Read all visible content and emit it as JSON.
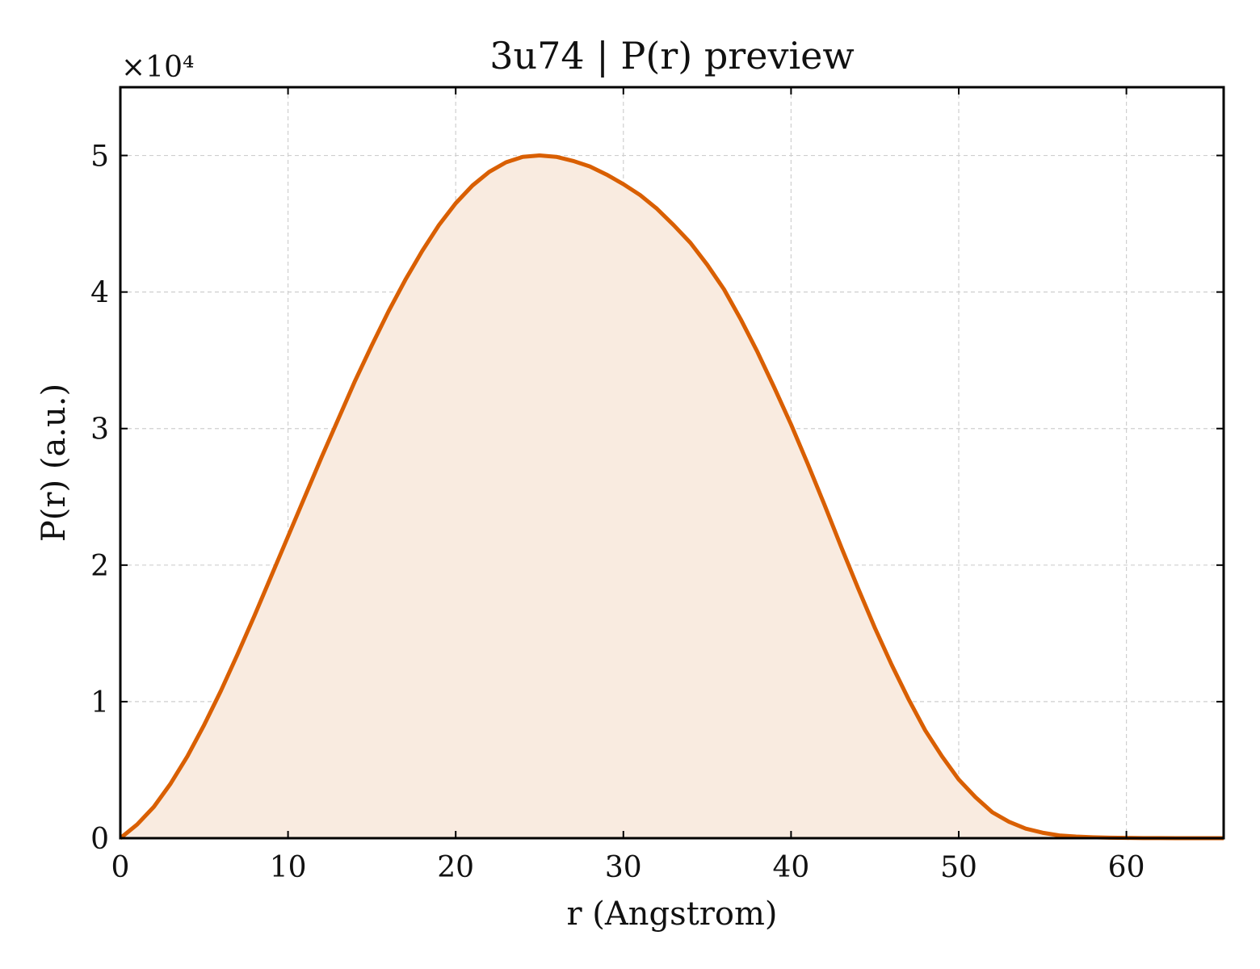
{
  "chart_data": {
    "type": "area",
    "title": "3u74 | P(r) preview",
    "xlabel": "r (Angstrom)",
    "ylabel": "P(r) (a.u.)",
    "y_multiplier_label": "×10⁴",
    "y_multiplier": 10000,
    "xlim": [
      0,
      65.8
    ],
    "ylim": [
      0,
      55000
    ],
    "x_ticks": [
      0,
      10,
      20,
      30,
      40,
      50,
      60
    ],
    "y_ticks": [
      0,
      10000,
      20000,
      30000,
      40000,
      50000
    ],
    "y_tick_labels": [
      "0",
      "1",
      "2",
      "3",
      "4",
      "5"
    ],
    "grid": true,
    "line_color": "#d95f02",
    "fill_color": "#f9ebe0",
    "series": [
      {
        "x": [
          0,
          1,
          2,
          3,
          4,
          5,
          6,
          7,
          8,
          9,
          10,
          11,
          12,
          13,
          14,
          15,
          16,
          17,
          18,
          19,
          20,
          21,
          22,
          23,
          24,
          25,
          26,
          27,
          28,
          29,
          30,
          31,
          32,
          33,
          34,
          35,
          36,
          37,
          38,
          39,
          40,
          41,
          42,
          43,
          44,
          45,
          46,
          47,
          48,
          49,
          50,
          51,
          52,
          53,
          54,
          55,
          56,
          57,
          58,
          59,
          60,
          61,
          62,
          63,
          64,
          65,
          65.8
        ],
        "y": [
          0,
          1000,
          2300,
          4000,
          6000,
          8300,
          10800,
          13500,
          16300,
          19200,
          22100,
          25000,
          27900,
          30700,
          33500,
          36100,
          38600,
          40900,
          43000,
          44900,
          46500,
          47800,
          48800,
          49500,
          49900,
          50000,
          49900,
          49600,
          49200,
          48600,
          47900,
          47100,
          46100,
          44900,
          43600,
          42000,
          40200,
          38000,
          35600,
          33000,
          30300,
          27400,
          24400,
          21300,
          18300,
          15400,
          12700,
          10200,
          7900,
          6000,
          4300,
          3000,
          1900,
          1200,
          700,
          400,
          200,
          120,
          70,
          40,
          20,
          10,
          5,
          2,
          1,
          0,
          0
        ]
      }
    ]
  }
}
